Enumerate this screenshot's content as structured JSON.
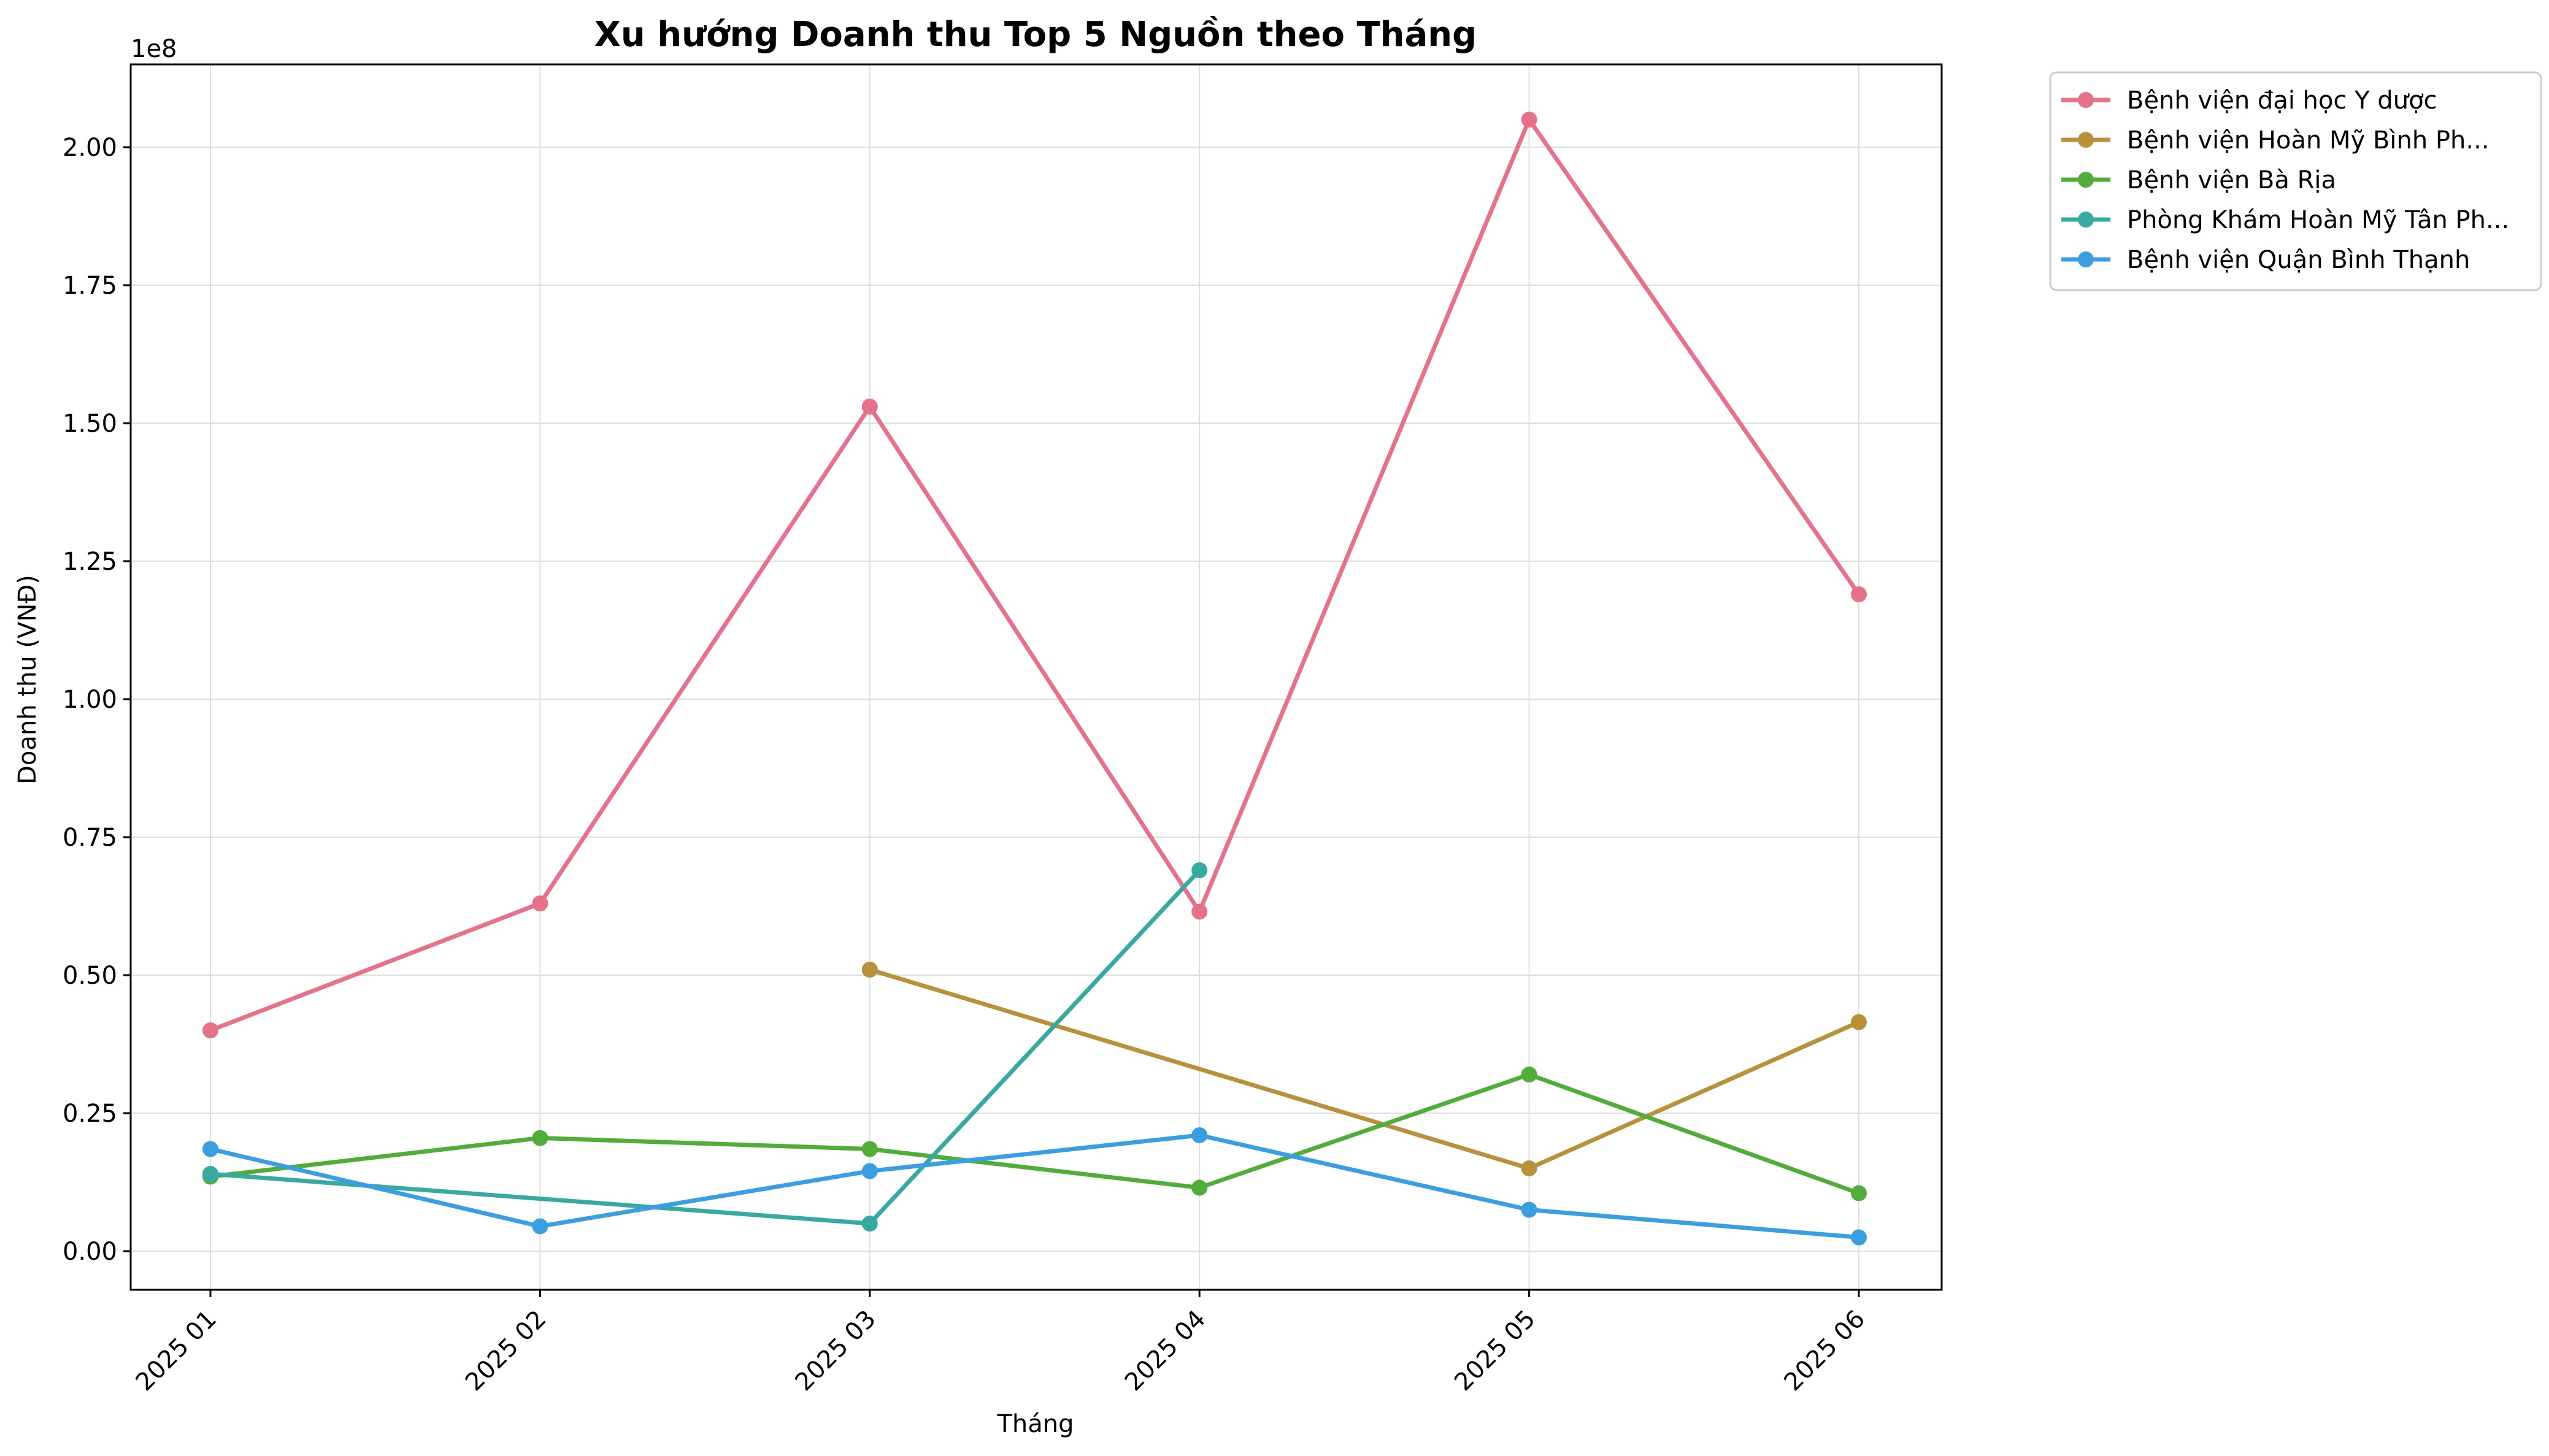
{
  "chart_data": {
    "type": "line",
    "title": "Xu hướng Doanh thu Top 5 Nguồn theo Tháng",
    "xlabel": "Tháng",
    "ylabel": "Doanh thu (VNĐ)",
    "y_offset_label": "1e8",
    "categories": [
      "2025 01",
      "2025 02",
      "2025 03",
      "2025 04",
      "2025 05",
      "2025 06"
    ],
    "ylim": [
      -0.07,
      2.15
    ],
    "yticks": [
      0.0,
      0.25,
      0.5,
      0.75,
      1.0,
      1.25,
      1.5,
      1.75,
      2.0
    ],
    "ytick_labels": [
      "0.00",
      "0.25",
      "0.50",
      "0.75",
      "1.00",
      "1.25",
      "1.50",
      "1.75",
      "2.00"
    ],
    "grid": true,
    "legend_position": "outside-top-right",
    "series": [
      {
        "name": "Bệnh viện đại học Y dược",
        "color": "#e8718a",
        "values": [
          0.4,
          0.63,
          1.53,
          0.615,
          2.05,
          1.19
        ]
      },
      {
        "name": "Bệnh viện Hoàn Mỹ Bình Ph...",
        "color": "#b8913a",
        "values": [
          null,
          null,
          0.51,
          null,
          0.15,
          0.415
        ]
      },
      {
        "name": "Bệnh viện Bà Rịa",
        "color": "#50ad3a",
        "values": [
          0.135,
          0.205,
          0.185,
          0.115,
          0.32,
          0.105
        ]
      },
      {
        "name": "Phòng Khám Hoàn Mỹ Tân Ph...",
        "color": "#36a9a0",
        "values": [
          0.14,
          null,
          0.05,
          0.69,
          null,
          null
        ]
      },
      {
        "name": "Bệnh viện Quận Bình Thạnh",
        "color": "#3a9ee3",
        "values": [
          0.185,
          0.045,
          0.145,
          0.21,
          0.075,
          0.025
        ]
      }
    ]
  }
}
